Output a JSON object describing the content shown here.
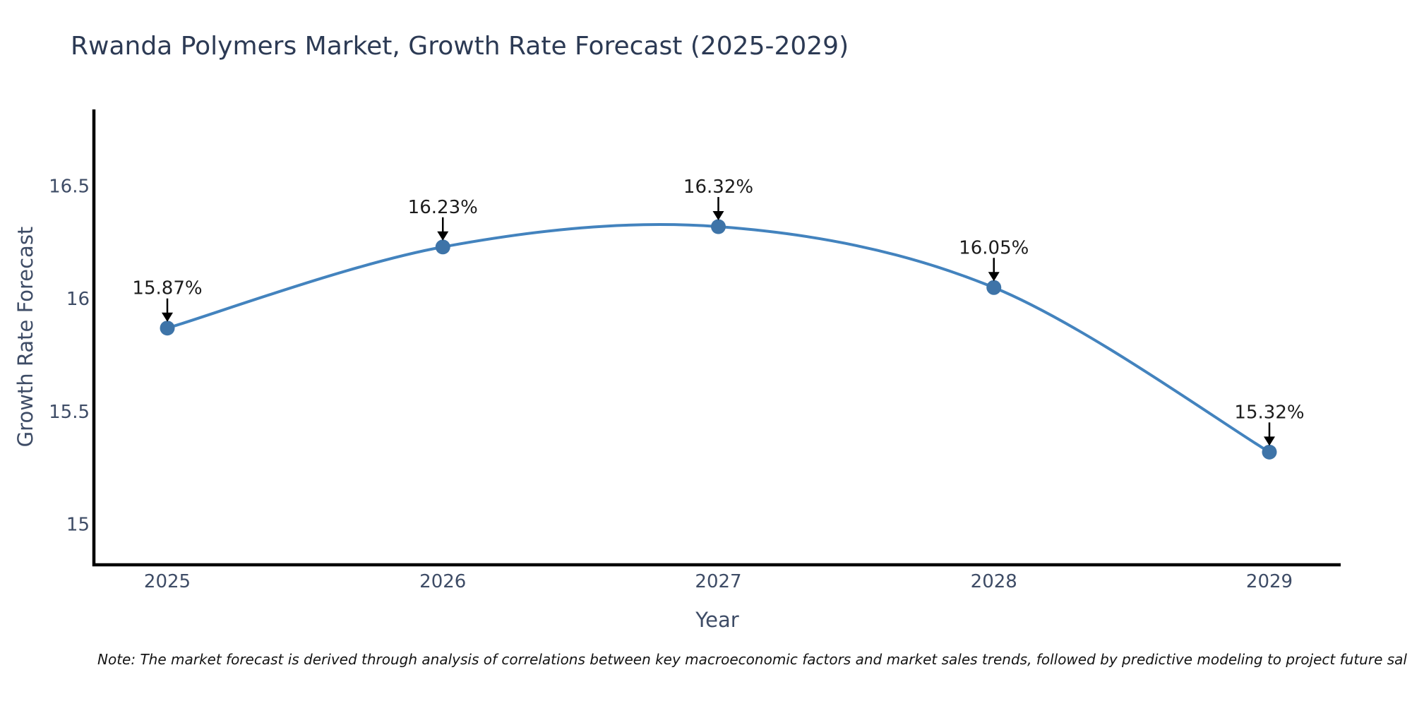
{
  "chart_data": {
    "type": "line",
    "title": "Rwanda Polymers Market, Growth Rate Forecast (2025-2029)",
    "xlabel": "Year",
    "ylabel": "Growth Rate Forecast",
    "categories": [
      "2025",
      "2026",
      "2027",
      "2028",
      "2029"
    ],
    "values": [
      15.87,
      16.23,
      16.32,
      16.05,
      15.32
    ],
    "point_labels": [
      "15.87%",
      "16.23%",
      "16.32%",
      "16.05%",
      "15.32%"
    ],
    "yticks": [
      15,
      15.5,
      16,
      16.5
    ],
    "ytick_labels": [
      "15",
      "15.5",
      "16",
      "16.5"
    ],
    "ylim": [
      14.82,
      16.84
    ],
    "grid": false,
    "legend": "none",
    "marker": "circle",
    "annotation_style": "value label with downward arrow to each point"
  },
  "footnote": "Note: The market forecast is derived through analysis of correlations between key macroeconomic factors and market sales trends, followed by predictive modeling to project future sal",
  "colors": {
    "line": "#4383be",
    "marker": "#3e74a8",
    "spine": "#000000",
    "title_text": "#2c3a54",
    "axis_text": "#3e4c66",
    "annotation_text": "#1c1c1c",
    "arrow": "#000000",
    "background": "#ffffff"
  }
}
